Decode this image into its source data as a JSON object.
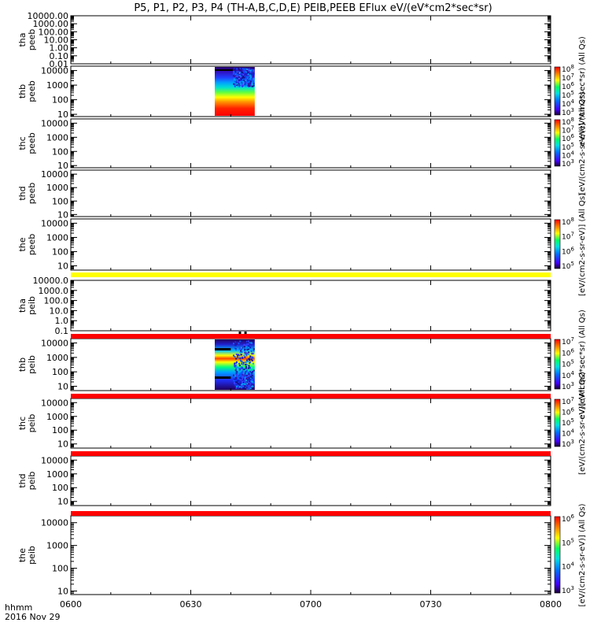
{
  "chart_data": {
    "type": "heatmap",
    "title": "P5, P1, P2, P3, P4 (TH-A,B,C,D,E) PEIB,PEEB EFlux eV/(eV*cm2*sec*sr)",
    "x_ticks": [
      "0600",
      "0630",
      "0700",
      "0730",
      "0800"
    ],
    "x_range": [
      "06:00",
      "08:00"
    ],
    "xlabel": "hhmm",
    "date_label": "2016 Nov 29",
    "panels": [
      {
        "probe": "tha",
        "species": "peeb",
        "ylabel": "tha\npeeb",
        "ylim": [
          0.01,
          10000
        ],
        "y_ticks": [
          "10000.00",
          "1000.00",
          "100.00",
          "10.00",
          "1.00",
          "0.10",
          "0.01"
        ],
        "data_interval": null,
        "colorbar": null
      },
      {
        "probe": "thb",
        "species": "peeb",
        "ylabel": "thb\npeeb",
        "ylim": [
          7,
          20000
        ],
        "y_ticks": [
          "10000",
          "1000",
          "100",
          "10"
        ],
        "data_interval": [
          "06:36",
          "06:46"
        ],
        "colorbar": {
          "ticks": [
            "10^8",
            "10^7",
            "10^6",
            "10^5",
            "10^4",
            "10^3"
          ],
          "label": "eV/(eV*cm2*sec*sr) (All Qs)"
        }
      },
      {
        "probe": "thc",
        "species": "peeb",
        "ylabel": "thc\npeeb",
        "ylim": [
          7,
          20000
        ],
        "y_ticks": [
          "10000",
          "1000",
          "100",
          "10"
        ],
        "data_interval": null,
        "colorbar": {
          "ticks": [
            "10^8",
            "10^7",
            "10^6",
            "10^5",
            "10^4",
            "10^3"
          ],
          "label": "[eV/(cm2-s-sr-eV)] (All Qs)"
        }
      },
      {
        "probe": "thd",
        "species": "peeb",
        "ylabel": "thd\npeeb",
        "ylim": [
          7,
          20000
        ],
        "y_ticks": [
          "10000",
          "1000",
          "100",
          "10"
        ],
        "data_interval": null,
        "colorbar": null
      },
      {
        "probe": "the",
        "species": "peeb",
        "ylabel": "the\npeeb",
        "ylim": [
          5,
          20000
        ],
        "y_ticks": [
          "10000",
          "1000",
          "100",
          "10"
        ],
        "data_interval": null,
        "colorbar": {
          "ticks": [
            "10^8",
            "10^7",
            "10^6",
            "10^5"
          ],
          "label": "[eV/(cm2-s-sr-eV)] (All Qs)"
        }
      },
      {
        "probe": "tha",
        "species": "peib",
        "ylabel": "tha\npeib",
        "ylim": [
          0.1,
          10000
        ],
        "y_ticks": [
          "10000.0",
          "1000.0",
          "100.0",
          "10.0",
          "1.0",
          "0.1"
        ],
        "data_interval": null,
        "colorbar": null
      },
      {
        "probe": "thb",
        "species": "peib",
        "ylabel": "thb\npeib",
        "ylim": [
          5,
          20000
        ],
        "y_ticks": [
          "10000",
          "1000",
          "100",
          "10"
        ],
        "data_interval": [
          "06:36",
          "06:46"
        ],
        "colorbar": {
          "ticks": [
            "10^7",
            "10^6",
            "10^5",
            "10^4",
            "10^3"
          ],
          "label": "eV/(eV*cm2*sec*sr) (All Qs)"
        }
      },
      {
        "probe": "thc",
        "species": "peib",
        "ylabel": "thc\npeib",
        "ylim": [
          5,
          20000
        ],
        "y_ticks": [
          "10000",
          "1000",
          "100",
          "10"
        ],
        "data_interval": null,
        "colorbar": {
          "ticks": [
            "10^7",
            "10^6",
            "10^5",
            "10^4",
            "10^3"
          ],
          "label": "[eV/(cm2-s-sr-eV)] (All Qs)"
        }
      },
      {
        "probe": "thd",
        "species": "peib",
        "ylabel": "thd\npeib",
        "ylim": [
          5,
          20000
        ],
        "y_ticks": [
          "10000",
          "1000",
          "100",
          "10"
        ],
        "data_interval": null,
        "colorbar": null
      },
      {
        "probe": "the",
        "species": "peib",
        "ylabel": "the\npeib",
        "ylim": [
          7,
          20000
        ],
        "y_ticks": [
          "10000",
          "1000",
          "100",
          "10"
        ],
        "data_interval": null,
        "colorbar": {
          "ticks": [
            "10^6",
            "10^5",
            "10^4",
            "10^3"
          ],
          "label": "[eV/(cm2-s-sr-eV)] (All Qs)"
        }
      }
    ],
    "gap_bars": [
      {
        "after_panel": 4,
        "color": "#ffff00"
      },
      {
        "after_panel": 5,
        "color": "#ff0000"
      },
      {
        "after_panel": 6,
        "color": "#ff0000"
      },
      {
        "after_panel": 7,
        "color": "#ff0000"
      },
      {
        "after_panel": 8,
        "color": "#ff0000"
      }
    ]
  }
}
